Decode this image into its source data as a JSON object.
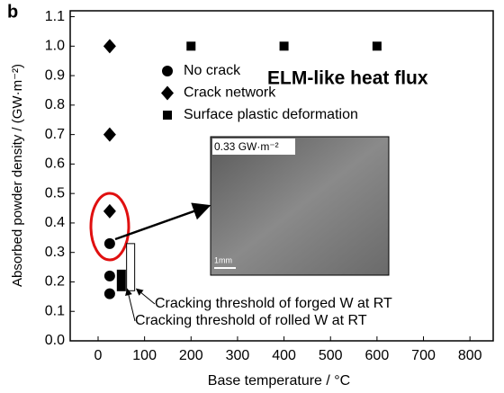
{
  "chart_data": {
    "type": "scatter",
    "panel_label": "b",
    "title": "ELM-like heat flux",
    "x_label": "Base temperature / °C",
    "y_label": "Absorbed powder density / (GW·m⁻²)",
    "xlim": [
      -60,
      850
    ],
    "ylim": [
      0,
      1.12
    ],
    "xticks": [
      0,
      100,
      200,
      300,
      400,
      500,
      600,
      700,
      800
    ],
    "yticks": [
      {
        "value": 0,
        "label": "0.0"
      },
      0.1,
      0.2,
      0.3,
      0.4,
      0.5,
      0.6,
      0.7,
      0.8,
      0.9,
      {
        "value": 1,
        "label": "1.0"
      },
      1.1
    ],
    "legend": "upper center",
    "series": [
      {
        "name": "No crack",
        "marker": "circle",
        "color": "#000000",
        "x": [
          25,
          25,
          25
        ],
        "values": [
          0.33,
          0.22,
          0.16
        ]
      },
      {
        "name": "Crack network",
        "marker": "diamond",
        "color": "#000000",
        "x": [
          25,
          25,
          25
        ],
        "values": [
          1.0,
          0.7,
          0.44
        ]
      },
      {
        "name": "Surface plastic deformation",
        "marker": "square",
        "color": "#000000",
        "x": [
          200,
          400,
          600
        ],
        "values": [
          1.0,
          1.0,
          1.0
        ]
      }
    ],
    "thresholds": [
      {
        "name": "Cracking threshold of forged W at RT",
        "color": "#ffffff",
        "x": 70,
        "low": 0.17,
        "high": 0.33
      },
      {
        "name": "Cracking threshold of rolled W at RT",
        "color": "#000000",
        "x": 50,
        "low": 0.17,
        "high": 0.24
      }
    ],
    "inset": {
      "label": "0.33 GW·m⁻²",
      "scale_bar": "1mm"
    }
  }
}
